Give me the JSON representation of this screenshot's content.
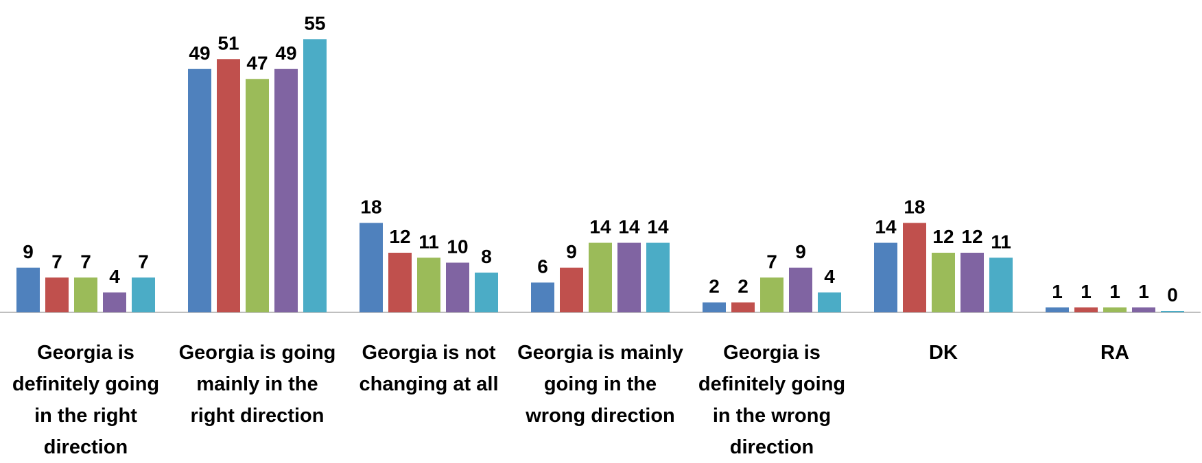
{
  "chart_data": {
    "type": "bar",
    "categories": [
      "Georgia is definitely going in the right direction",
      "Georgia is going mainly in the right direction",
      "Georgia is not changing at all",
      "Georgia is mainly going in the wrong direction",
      "Georgia is definitely going in the wrong direction",
      "DK",
      "RA"
    ],
    "series": [
      {
        "color": "#4f81bd",
        "values": [
          9,
          49,
          18,
          6,
          2,
          14,
          1
        ]
      },
      {
        "color": "#c0504d",
        "values": [
          7,
          51,
          12,
          9,
          2,
          18,
          1
        ]
      },
      {
        "color": "#9bbb59",
        "values": [
          7,
          47,
          11,
          14,
          7,
          12,
          1
        ]
      },
      {
        "color": "#8064a2",
        "values": [
          4,
          49,
          10,
          14,
          9,
          12,
          1
        ]
      },
      {
        "color": "#4bacc6",
        "values": [
          7,
          55,
          8,
          14,
          4,
          11,
          0
        ]
      }
    ]
  }
}
